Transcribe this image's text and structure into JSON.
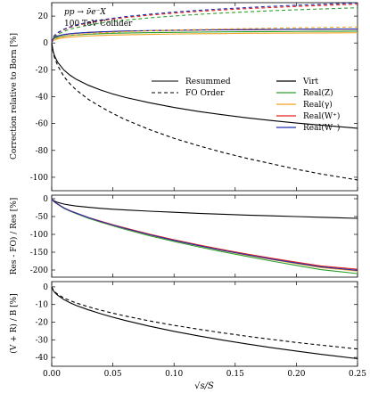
{
  "chart_data": [
    {
      "type": "line",
      "annotation_lines": [
        "pp → ν̄e⁻X",
        "100 TeV Collider"
      ],
      "ylabel": "Correction relative to Born [%]",
      "xlim": [
        0,
        0.25
      ],
      "ylim": [
        -110,
        30
      ],
      "yticks": [
        20,
        0,
        -20,
        -40,
        -60,
        -80,
        -100
      ],
      "xticks": [
        "0.00",
        "0.05",
        "0.10",
        "0.15",
        "0.20",
        "0.25"
      ],
      "x": [
        0,
        0.00125,
        0.0025,
        0.005,
        0.01,
        0.015,
        0.02,
        0.03,
        0.04,
        0.05,
        0.06,
        0.08,
        0.1,
        0.12,
        0.14,
        0.16,
        0.18,
        0.2,
        0.22,
        0.25
      ],
      "legend_styles": [
        {
          "label": "Resummed",
          "dash": "solid"
        },
        {
          "label": "FO Order",
          "dash": "dashed"
        }
      ],
      "legend_colors": [
        {
          "label": "Virt",
          "color": "#000000"
        },
        {
          "label": "Real(Z)",
          "color": "#2ca02c"
        },
        {
          "label": "Real(γ)",
          "color": "#f0a020"
        },
        {
          "label": "Real(W⁺)",
          "color": "#e8201a"
        },
        {
          "label": "Real(W⁻)",
          "color": "#1f2fb0"
        }
      ],
      "series": [
        {
          "color": "#000000",
          "dash": "solid",
          "values": [
            0,
            -6.5,
            -10,
            -14.5,
            -20.2,
            -24,
            -27,
            -31.5,
            -35,
            -38,
            -40.5,
            -44.5,
            -48,
            -51,
            -53.5,
            -55.8,
            -57.8,
            -59.6,
            -61.2,
            -63.5
          ]
        },
        {
          "color": "#000000",
          "dash": "dashed",
          "values": [
            0,
            -7.5,
            -11.5,
            -17,
            -25,
            -30.5,
            -35,
            -42,
            -47.5,
            -52.5,
            -57,
            -64.5,
            -71,
            -76.5,
            -81.5,
            -86,
            -90,
            -94,
            -97.5,
            -102
          ]
        },
        {
          "color": "#2ca02c",
          "dash": "solid",
          "values": [
            0,
            2.8,
            3.6,
            4.4,
            5.2,
            5.7,
            6,
            6.5,
            6.9,
            7.2,
            7.4,
            7.7,
            7.9,
            8.1,
            8.3,
            8.4,
            8.5,
            8.6,
            8.7,
            8.8
          ]
        },
        {
          "color": "#f0a020",
          "dash": "solid",
          "values": [
            0,
            1.8,
            2.4,
            3.1,
            3.9,
            4.4,
            4.7,
            5.2,
            5.6,
            5.9,
            6.1,
            6.4,
            6.7,
            6.9,
            7,
            7.2,
            7.3,
            7.4,
            7.5,
            7.6
          ]
        },
        {
          "color": "#e8201a",
          "dash": "solid",
          "values": [
            0,
            3.3,
            4.3,
            5.3,
            6.2,
            6.8,
            7.2,
            7.8,
            8.2,
            8.5,
            8.8,
            9.1,
            9.4,
            9.6,
            9.8,
            9.9,
            10,
            10.1,
            10.2,
            10.3
          ]
        },
        {
          "color": "#1f2fb0",
          "dash": "solid",
          "values": [
            0,
            3.3,
            4.3,
            5.3,
            6.3,
            6.9,
            7.3,
            7.9,
            8.3,
            8.6,
            8.9,
            9.2,
            9.5,
            9.7,
            9.9,
            10,
            10.1,
            10.2,
            10.3,
            10.4
          ]
        },
        {
          "color": "#2ca02c",
          "dash": "dashed",
          "values": [
            0,
            3.5,
            4.8,
            6.5,
            8.7,
            10.2,
            11.4,
            13.3,
            14.8,
            16,
            17,
            18.7,
            20.1,
            21.3,
            22.3,
            23.2,
            24,
            24.7,
            25.3,
            26.2
          ]
        },
        {
          "color": "#f0a020",
          "dash": "dashed",
          "values": [
            0,
            2.2,
            2.9,
            3.8,
            4.9,
            5.6,
            6.1,
            6.9,
            7.5,
            8,
            8.4,
            9.1,
            9.6,
            10,
            10.4,
            10.7,
            11,
            11.3,
            11.5,
            11.9
          ]
        },
        {
          "color": "#e8201a",
          "dash": "dashed",
          "values": [
            0,
            4.2,
            5.6,
            7.5,
            9.9,
            11.6,
            12.9,
            14.9,
            16.5,
            17.8,
            18.9,
            20.7,
            22.2,
            23.5,
            24.6,
            25.6,
            26.4,
            27.2,
            27.9,
            28.9
          ]
        },
        {
          "color": "#1f2fb0",
          "dash": "dashed",
          "values": [
            0,
            4.4,
            5.9,
            7.8,
            10.3,
            12,
            13.4,
            15.5,
            17.1,
            18.4,
            19.6,
            21.4,
            23,
            24.3,
            25.4,
            26.4,
            27.3,
            28.1,
            28.8,
            29.8
          ]
        }
      ]
    },
    {
      "type": "line",
      "ylabel": "Res - FO) / Res [%]",
      "xlim": [
        0,
        0.25
      ],
      "ylim": [
        -220,
        10
      ],
      "yticks": [
        0,
        -50,
        -100,
        -150,
        -200
      ],
      "xticks": [
        "0.00",
        "0.05",
        "0.10",
        "0.15",
        "0.20",
        "0.25"
      ],
      "x": [
        0,
        0.00125,
        0.0025,
        0.005,
        0.01,
        0.015,
        0.02,
        0.03,
        0.04,
        0.05,
        0.06,
        0.08,
        0.1,
        0.12,
        0.14,
        0.16,
        0.18,
        0.2,
        0.22,
        0.25
      ],
      "series": [
        {
          "color": "#000000",
          "dash": "solid",
          "values": [
            0,
            -4.5,
            -7,
            -10.5,
            -15,
            -18,
            -20.5,
            -24,
            -27,
            -29.5,
            -31.5,
            -35,
            -38,
            -41,
            -43.5,
            -46,
            -48,
            -50,
            -52,
            -55
          ]
        },
        {
          "color": "#2ca02c",
          "dash": "solid",
          "values": [
            0,
            -6,
            -10,
            -16,
            -27,
            -35,
            -42,
            -55,
            -66,
            -76,
            -86,
            -104,
            -120,
            -135,
            -149,
            -162,
            -175,
            -187,
            -199,
            -210
          ]
        },
        {
          "color": "#f0a020",
          "dash": "solid",
          "values": [
            0,
            -6,
            -9.5,
            -15.5,
            -26,
            -34,
            -41,
            -53.5,
            -64.5,
            -74.5,
            -84,
            -101.5,
            -117.5,
            -132,
            -145.5,
            -158.5,
            -170.5,
            -182,
            -193,
            -203
          ]
        },
        {
          "color": "#e8201a",
          "dash": "solid",
          "values": [
            0,
            -6,
            -9.5,
            -15,
            -25.5,
            -33.5,
            -40,
            -52.5,
            -63,
            -73,
            -82,
            -99.5,
            -115,
            -129.5,
            -143,
            -155.5,
            -167,
            -178,
            -188.5,
            -198
          ]
        },
        {
          "color": "#1f2fb0",
          "dash": "solid",
          "values": [
            0,
            -6,
            -9.5,
            -15.5,
            -26,
            -34,
            -40.5,
            -53,
            -64,
            -74,
            -83.5,
            -101,
            -117,
            -131.5,
            -145,
            -157.5,
            -169.5,
            -180.5,
            -191,
            -201
          ]
        }
      ]
    },
    {
      "type": "line",
      "ylabel": "(V + R) / B [%]",
      "xlabel": "√s/S",
      "xlim": [
        0,
        0.25
      ],
      "ylim": [
        -45,
        3
      ],
      "yticks": [
        0,
        -10,
        -20,
        -30,
        -40
      ],
      "xticks": [
        "0.00",
        "0.05",
        "0.10",
        "0.15",
        "0.20",
        "0.25"
      ],
      "x": [
        0,
        0.00125,
        0.0025,
        0.005,
        0.01,
        0.015,
        0.02,
        0.03,
        0.04,
        0.05,
        0.06,
        0.08,
        0.1,
        0.12,
        0.14,
        0.16,
        0.18,
        0.2,
        0.22,
        0.25
      ],
      "series": [
        {
          "color": "#000000",
          "dash": "solid",
          "values": [
            0,
            -2,
            -3.2,
            -4.8,
            -7.2,
            -9,
            -10.5,
            -13,
            -15.2,
            -17.2,
            -19,
            -22.3,
            -25.2,
            -27.8,
            -30.2,
            -32.4,
            -34.5,
            -36.4,
            -38.2,
            -40.7
          ]
        },
        {
          "color": "#000000",
          "dash": "dashed",
          "values": [
            0,
            -1.8,
            -2.8,
            -4.2,
            -6.3,
            -7.8,
            -9.1,
            -11.3,
            -13.2,
            -14.9,
            -16.5,
            -19.3,
            -21.8,
            -24,
            -26.1,
            -28,
            -29.8,
            -31.5,
            -33,
            -35.2
          ]
        }
      ]
    }
  ]
}
